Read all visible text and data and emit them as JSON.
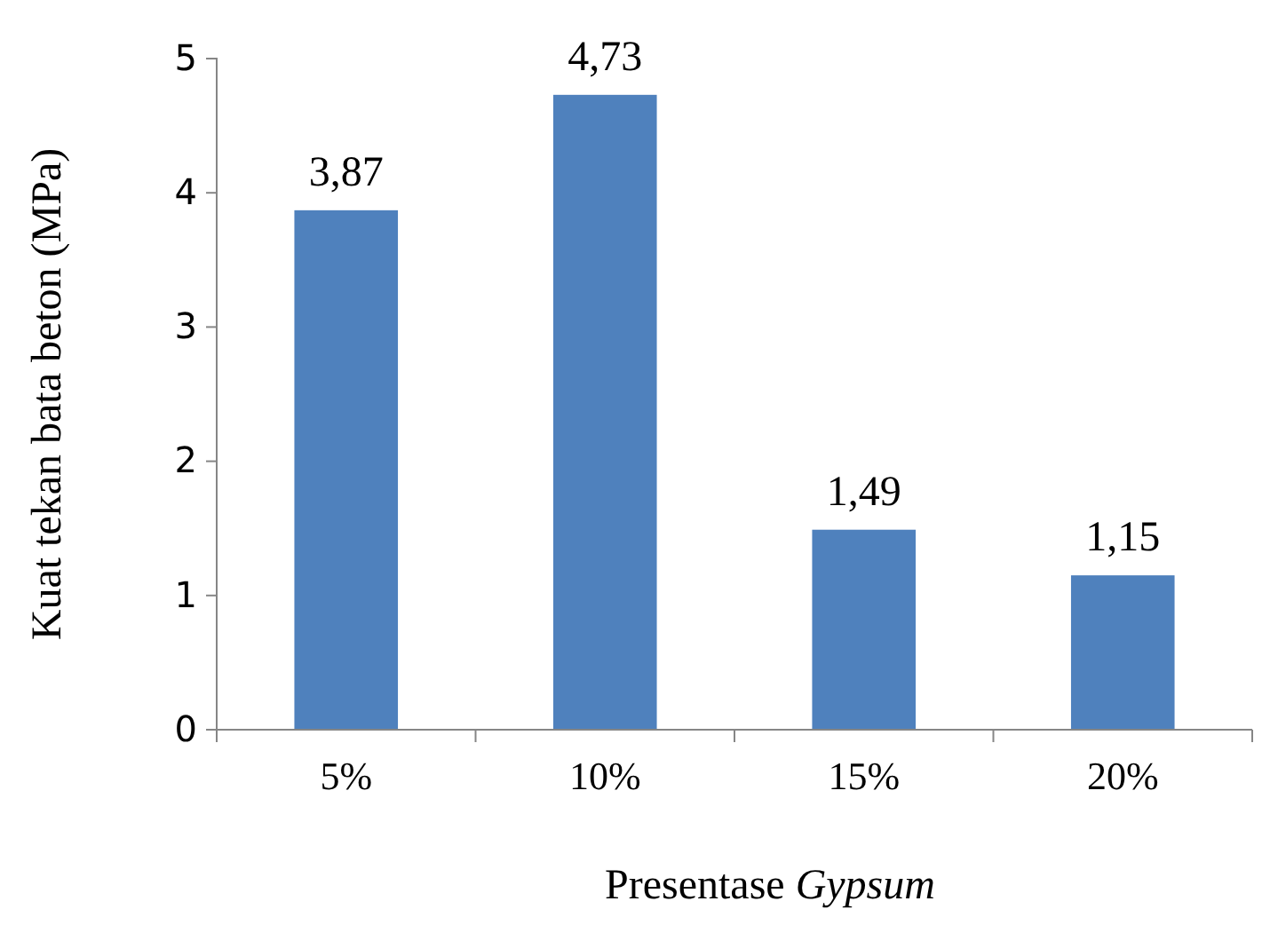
{
  "chart_data": {
    "type": "bar",
    "xlabel": "Presentase Gypsum",
    "ylabel": "Kuat tekan bata beton (MPa)",
    "categories": [
      "5%",
      "10%",
      "15%",
      "20%"
    ],
    "values": [
      3.87,
      4.73,
      1.49,
      1.15
    ],
    "color": "#4f81bd",
    "value_labels": [
      "3,87",
      "4,73",
      "1,49",
      "1,15"
    ],
    "ylim": [
      0,
      5
    ],
    "yticks": [
      0,
      1,
      2,
      3,
      4,
      5
    ],
    "grid": false
  }
}
